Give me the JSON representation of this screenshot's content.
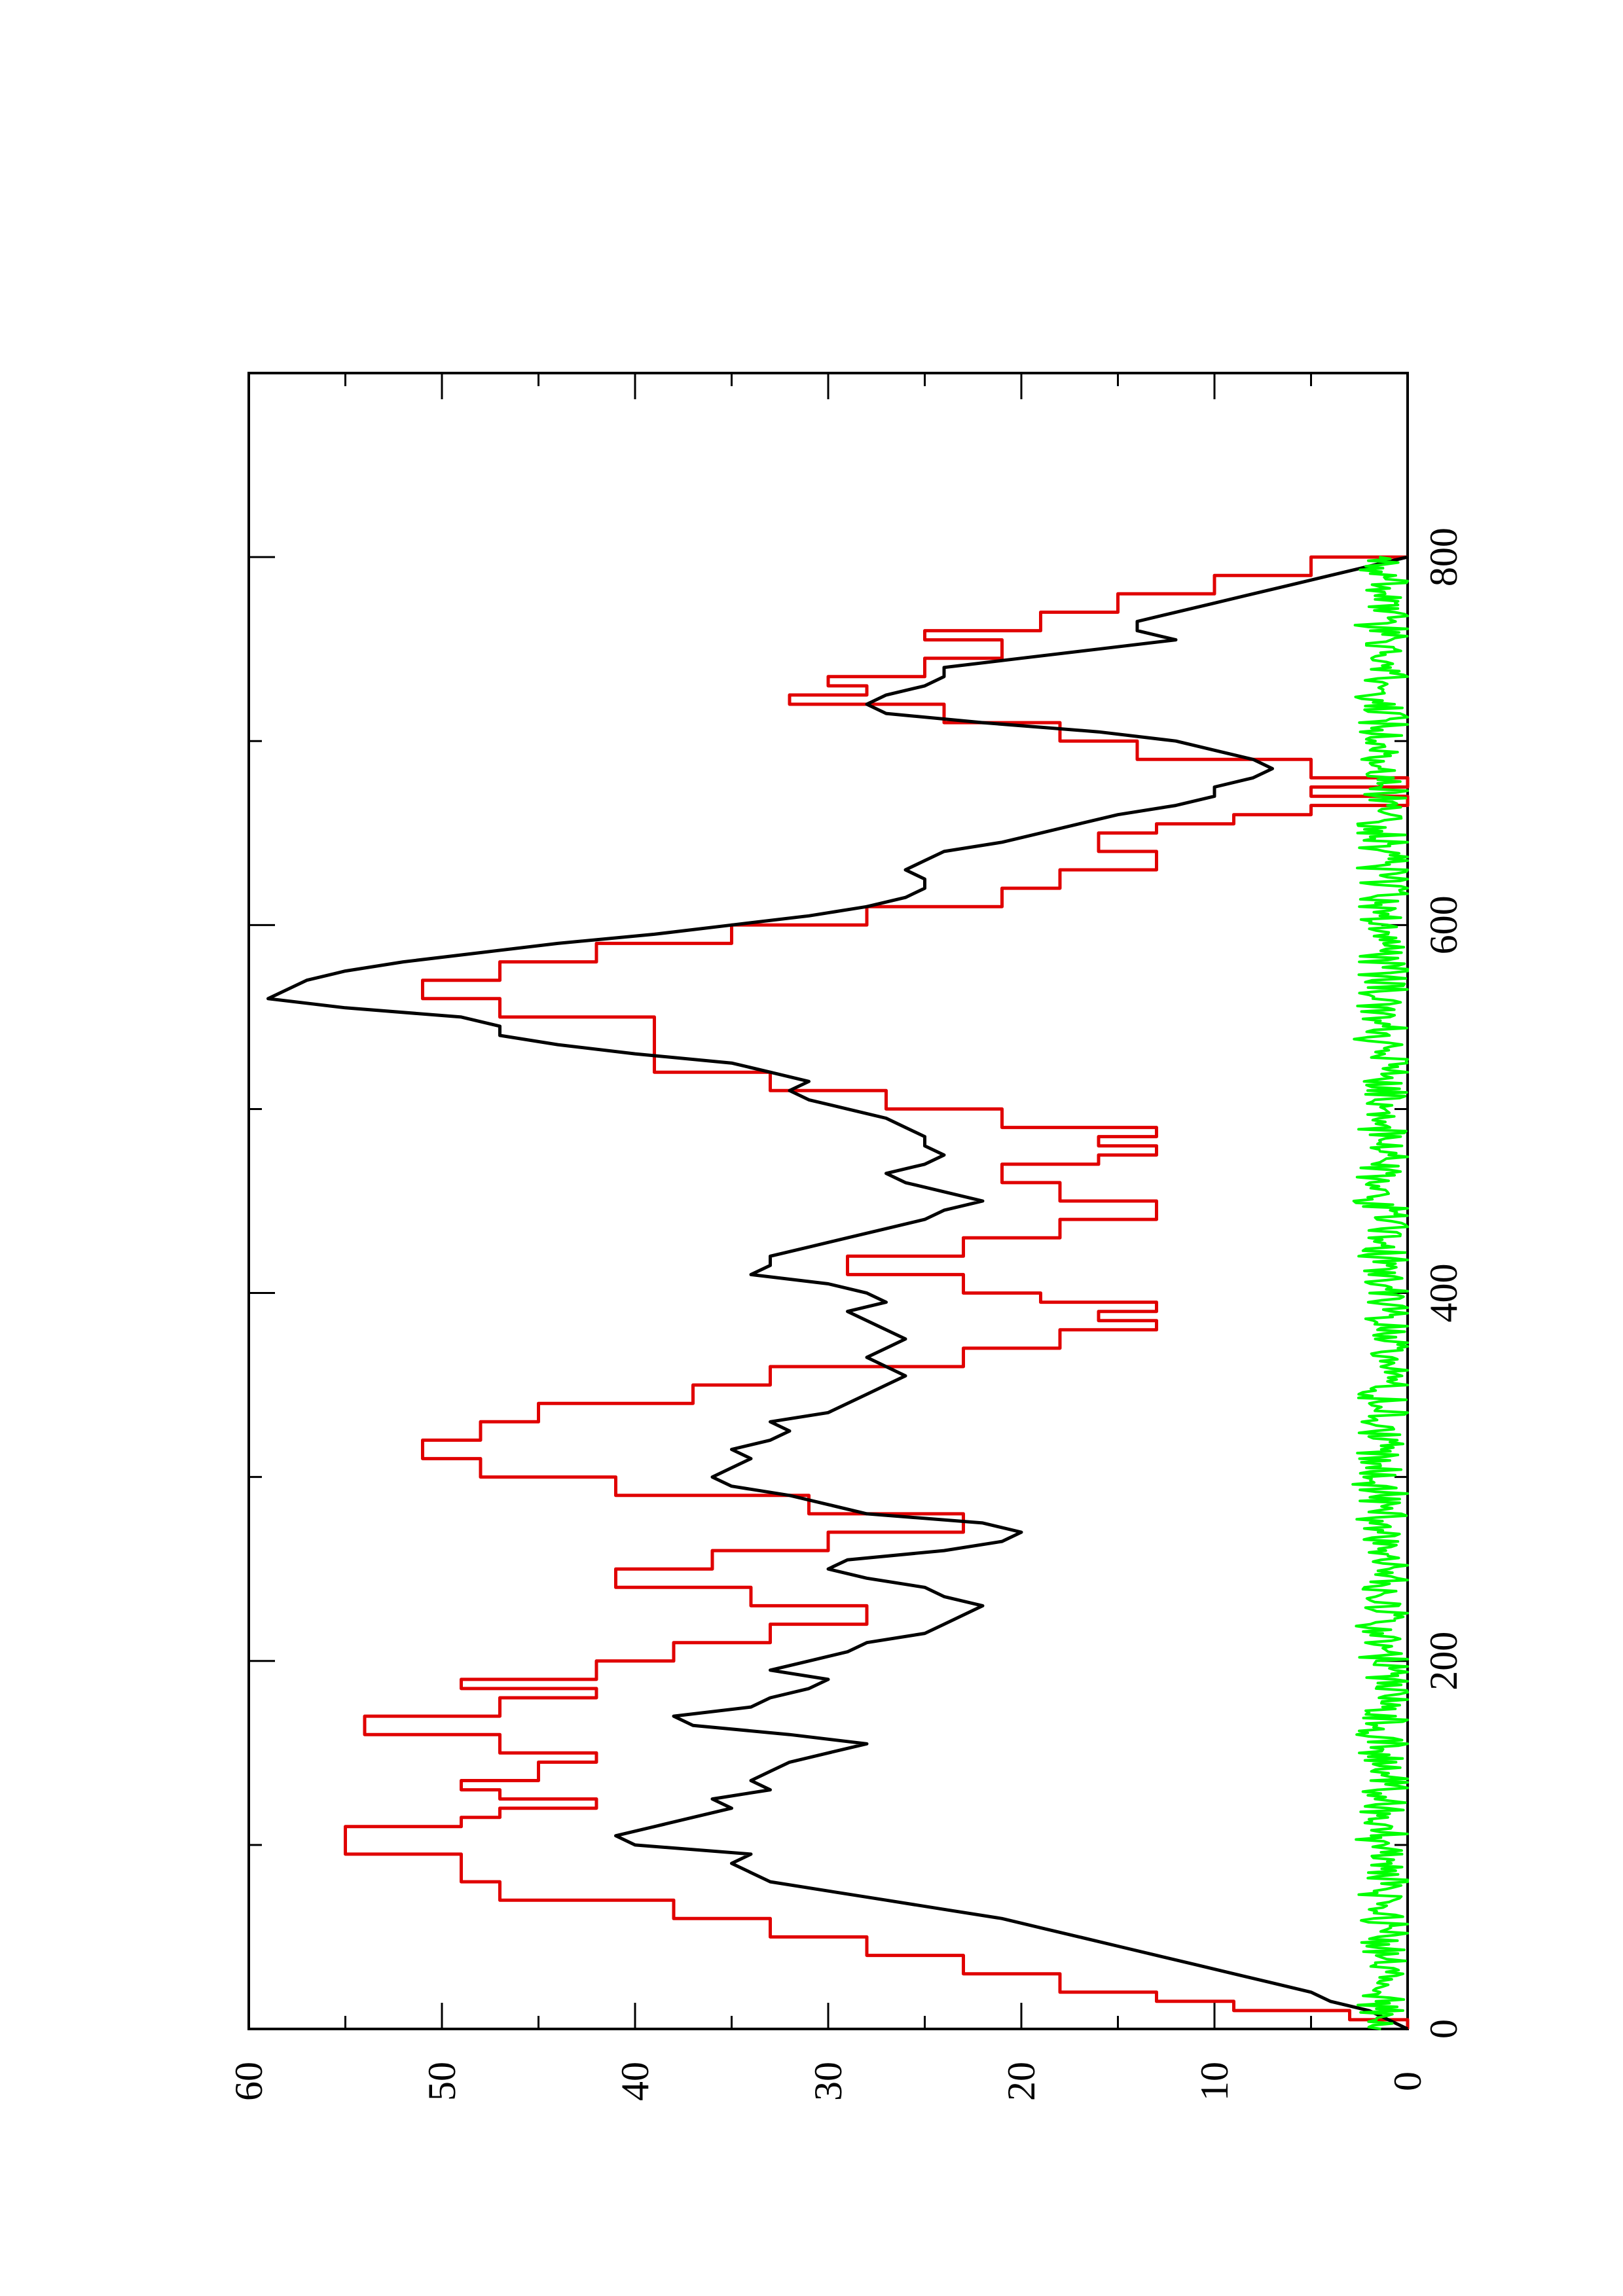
{
  "chart_data": {
    "type": "line",
    "orientation": "rotated-90-ccw",
    "title": "",
    "xlabel": "",
    "ylabel": "",
    "xlim": [
      0,
      900
    ],
    "ylim": [
      0,
      60
    ],
    "x_ticks": [
      0,
      200,
      400,
      600,
      800
    ],
    "y_ticks": [
      0,
      10,
      20,
      30,
      40,
      50,
      60
    ],
    "x_minor_ticks": [
      100,
      300,
      500,
      700
    ],
    "y_minor_ticks": [
      5,
      15,
      25,
      35,
      45,
      55
    ],
    "x_tick_labels": [
      "0",
      "200",
      "400",
      "600",
      "800"
    ],
    "y_tick_labels": [
      "0",
      "10",
      "20",
      "30",
      "40",
      "50",
      "60"
    ],
    "grid": false,
    "legend": "none",
    "series": [
      {
        "color": "#e00000",
        "step": true,
        "x": [
          0,
          5,
          10,
          15,
          20,
          30,
          40,
          50,
          60,
          70,
          80,
          95,
          110,
          115,
          120,
          125,
          130,
          135,
          145,
          150,
          160,
          170,
          180,
          185,
          190,
          200,
          210,
          220,
          230,
          240,
          250,
          260,
          270,
          280,
          290,
          300,
          310,
          320,
          330,
          340,
          350,
          360,
          370,
          380,
          385,
          390,
          395,
          400,
          410,
          420,
          430,
          440,
          450,
          460,
          470,
          475,
          480,
          485,
          490,
          500,
          510,
          520,
          530,
          540,
          550,
          560,
          570,
          580,
          590,
          600,
          610,
          620,
          630,
          640,
          650,
          655,
          660,
          665,
          670,
          675,
          680,
          690,
          700,
          710,
          720,
          725,
          730,
          735,
          745,
          755,
          760,
          770,
          780,
          790,
          800
        ],
        "values": [
          0,
          3,
          9,
          13,
          18,
          23,
          28,
          33,
          38,
          47,
          49,
          55,
          49,
          47,
          42,
          47,
          49,
          45,
          42,
          47,
          54,
          47,
          42,
          49,
          42,
          38,
          33,
          28,
          34,
          41,
          36,
          30,
          23,
          31,
          41,
          48,
          51,
          48,
          45,
          37,
          33,
          23,
          18,
          13,
          16,
          13,
          19,
          23,
          29,
          23,
          18,
          13,
          18,
          21,
          16,
          13,
          16,
          13,
          21,
          27,
          33,
          39,
          39,
          39,
          47,
          51,
          47,
          42,
          35,
          28,
          21,
          18,
          13,
          16,
          13,
          9,
          5,
          0,
          5,
          0,
          5,
          14,
          18,
          24,
          32,
          28,
          30,
          25,
          21,
          25,
          19,
          15,
          10,
          5,
          0
        ]
      },
      {
        "color": "#000000",
        "step": false,
        "x": [
          0,
          5,
          10,
          15,
          20,
          25,
          30,
          35,
          40,
          45,
          50,
          55,
          60,
          65,
          70,
          75,
          80,
          85,
          90,
          95,
          100,
          105,
          110,
          115,
          120,
          125,
          130,
          135,
          140,
          145,
          150,
          155,
          160,
          165,
          170,
          175,
          180,
          185,
          190,
          195,
          200,
          205,
          210,
          215,
          220,
          225,
          230,
          235,
          240,
          245,
          250,
          255,
          260,
          265,
          270,
          275,
          280,
          285,
          290,
          295,
          300,
          305,
          310,
          315,
          320,
          325,
          330,
          335,
          340,
          345,
          350,
          355,
          360,
          365,
          370,
          375,
          380,
          385,
          390,
          395,
          400,
          405,
          410,
          415,
          420,
          425,
          430,
          435,
          440,
          445,
          450,
          455,
          460,
          465,
          470,
          475,
          480,
          485,
          490,
          495,
          500,
          505,
          510,
          515,
          520,
          525,
          530,
          535,
          540,
          545,
          550,
          555,
          560,
          565,
          570,
          575,
          580,
          585,
          590,
          595,
          600,
          605,
          610,
          615,
          620,
          625,
          630,
          635,
          640,
          645,
          650,
          655,
          660,
          665,
          670,
          675,
          680,
          685,
          690,
          695,
          700,
          705,
          710,
          715,
          720,
          725,
          730,
          735,
          740,
          745,
          750,
          755,
          760,
          765,
          770,
          775,
          780,
          785,
          790,
          795,
          800
        ],
        "values": [
          0,
          1,
          2,
          4,
          5,
          7,
          9,
          11,
          13,
          15,
          17,
          19,
          21,
          24,
          27,
          30,
          33,
          34,
          35,
          34,
          40,
          41,
          39,
          37,
          35,
          36,
          33,
          34,
          33,
          32,
          30,
          28,
          32,
          37,
          38,
          34,
          33,
          31,
          30,
          33,
          31,
          29,
          28,
          25,
          24,
          23,
          22,
          24,
          25,
          28,
          30,
          29,
          24,
          21,
          20,
          22,
          28,
          30,
          32,
          35,
          36,
          35,
          34,
          35,
          33,
          32,
          33,
          30,
          29,
          28,
          27,
          26,
          27,
          28,
          27,
          26,
          27,
          28,
          29,
          27,
          28,
          30,
          34,
          33,
          33,
          31,
          29,
          27,
          25,
          24,
          22,
          24,
          26,
          27,
          25,
          24,
          25,
          25,
          26,
          27,
          29,
          31,
          32,
          31,
          33,
          35,
          40,
          44,
          47,
          47,
          49,
          55,
          59,
          58,
          57,
          55,
          52,
          48,
          44,
          39,
          35,
          31,
          28,
          26,
          25,
          25,
          26,
          25,
          24,
          21,
          19,
          17,
          15,
          12,
          10,
          10,
          8,
          7,
          8,
          10,
          12,
          16,
          22,
          27,
          28,
          27,
          25,
          24,
          24,
          20,
          16,
          12,
          14,
          14,
          12,
          10,
          8,
          6,
          4,
          2,
          0
        ]
      },
      {
        "color": "#00ff00",
        "step": false,
        "generated_noise": true,
        "x_range": [
          0,
          800
        ],
        "points": 800,
        "min": 0.0,
        "max": 3.5,
        "mean": 1.2
      }
    ]
  }
}
